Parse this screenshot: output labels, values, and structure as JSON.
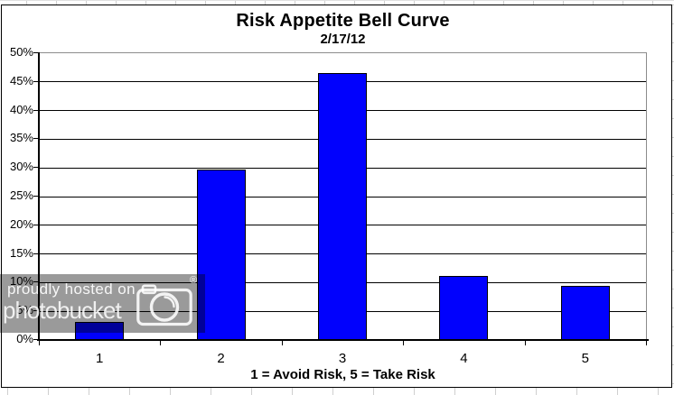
{
  "chart_data": {
    "type": "bar",
    "title": "Risk Appetite Bell Curve",
    "subtitle": "2/17/12",
    "categories": [
      "1",
      "2",
      "3",
      "4",
      "5"
    ],
    "values": [
      3.2,
      29.7,
      46.5,
      11.1,
      9.5
    ],
    "xlabel": "1 = Avoid Risk, 5 = Take Risk",
    "ylabel": "",
    "ylim": [
      0,
      50
    ],
    "ytick_step": 5,
    "ytick_labels": [
      "0%",
      "5%",
      "10%",
      "15%",
      "20%",
      "25%",
      "30%",
      "35%",
      "40%",
      "45%",
      "50%"
    ],
    "grid": true,
    "legend": false,
    "bar_color": "#0101fd",
    "bar_border_color": "#000000",
    "gridline_color": "#000000",
    "plot_border_color": "#8c8c8c"
  },
  "watermark": {
    "line1": "proudly hosted on",
    "line2": "photobucket",
    "registered_mark": "®",
    "camera_icon": "camera-icon",
    "band_color": "#9a9a9a",
    "text_color": "#ffffff"
  }
}
